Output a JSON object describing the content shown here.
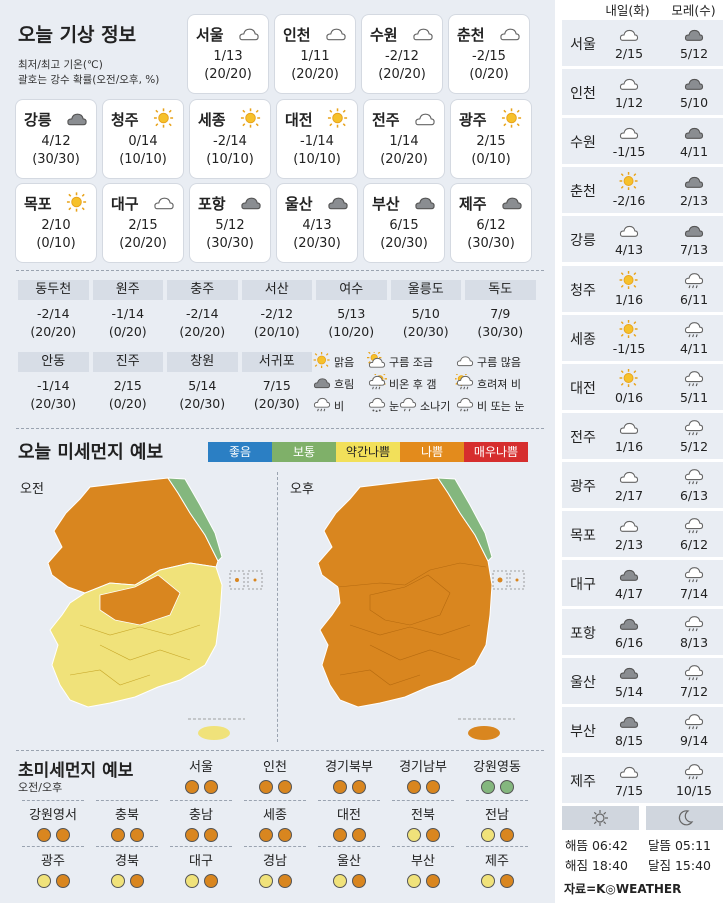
{
  "title": "오늘 기상 정보",
  "subtitle1": "최저/최고 기온(℃)",
  "subtitle2": "괄호는 강수 확률(오전/오후, %)",
  "cities": [
    {
      "name": "서울",
      "icon": "cloud",
      "temp": "1/13",
      "prob": "(20/20)"
    },
    {
      "name": "인천",
      "icon": "cloud",
      "temp": "1/11",
      "prob": "(20/20)"
    },
    {
      "name": "수원",
      "icon": "cloud",
      "temp": "-2/12",
      "prob": "(20/20)"
    },
    {
      "name": "춘천",
      "icon": "cloud",
      "temp": "-2/15",
      "prob": "(0/20)"
    },
    {
      "name": "강릉",
      "icon": "dark-cloud",
      "temp": "4/12",
      "prob": "(30/30)"
    },
    {
      "name": "청주",
      "icon": "sun",
      "temp": "0/14",
      "prob": "(10/10)"
    },
    {
      "name": "세종",
      "icon": "sun",
      "temp": "-2/14",
      "prob": "(10/10)"
    },
    {
      "name": "대전",
      "icon": "sun",
      "temp": "-1/14",
      "prob": "(10/10)"
    },
    {
      "name": "전주",
      "icon": "cloud",
      "temp": "1/14",
      "prob": "(20/20)"
    },
    {
      "name": "광주",
      "icon": "sun",
      "temp": "2/15",
      "prob": "(0/10)"
    },
    {
      "name": "목포",
      "icon": "sun",
      "temp": "2/10",
      "prob": "(0/10)"
    },
    {
      "name": "대구",
      "icon": "cloud",
      "temp": "2/15",
      "prob": "(20/20)"
    },
    {
      "name": "포항",
      "icon": "dark-cloud",
      "temp": "5/12",
      "prob": "(30/30)"
    },
    {
      "name": "울산",
      "icon": "dark-cloud",
      "temp": "4/13",
      "prob": "(20/30)"
    },
    {
      "name": "부산",
      "icon": "dark-cloud",
      "temp": "6/15",
      "prob": "(20/30)"
    },
    {
      "name": "제주",
      "icon": "dark-cloud",
      "temp": "6/12",
      "prob": "(30/30)"
    }
  ],
  "table1": [
    {
      "name": "동두천",
      "temp": "-2/14",
      "prob": "(20/20)"
    },
    {
      "name": "원주",
      "temp": "-1/14",
      "prob": "(0/20)"
    },
    {
      "name": "충주",
      "temp": "-2/14",
      "prob": "(20/20)"
    },
    {
      "name": "서산",
      "temp": "-2/12",
      "prob": "(20/10)"
    },
    {
      "name": "여수",
      "temp": "5/13",
      "prob": "(10/20)"
    },
    {
      "name": "울릉도",
      "temp": "5/10",
      "prob": "(20/30)"
    },
    {
      "name": "독도",
      "temp": "7/9",
      "prob": "(30/30)"
    }
  ],
  "table2": [
    {
      "name": "안동",
      "temp": "-1/14",
      "prob": "(20/30)"
    },
    {
      "name": "진주",
      "temp": "2/15",
      "prob": "(0/20)"
    },
    {
      "name": "창원",
      "temp": "5/14",
      "prob": "(20/30)"
    },
    {
      "name": "서귀포",
      "temp": "7/15",
      "prob": "(20/30)"
    }
  ],
  "legend": [
    {
      "icon": "sun",
      "label": "맑음"
    },
    {
      "icon": "sun-cloud",
      "label": "구름 조금"
    },
    {
      "icon": "cloud",
      "label": "구름 많음"
    },
    {
      "icon": "dark-cloud",
      "label": "흐림"
    },
    {
      "icon": "rain-sun",
      "label": "비온 후 갬"
    },
    {
      "icon": "sun-rain",
      "label": "흐려져 비"
    },
    {
      "icon": "rain",
      "label": "비"
    },
    {
      "icon": "snow",
      "label": "눈"
    },
    {
      "icon": "shower",
      "label": "소나기"
    },
    {
      "icon": "rain-snow",
      "label": "비 또는 눈"
    }
  ],
  "dust": {
    "title": "오늘 미세먼지 예보",
    "scale": [
      {
        "label": "좋음",
        "color": "#2b7fc4"
      },
      {
        "label": "보통",
        "color": "#7fb069"
      },
      {
        "label": "약간나쁨",
        "color": "#f2e05a"
      },
      {
        "label": "나쁨",
        "color": "#e38b1c"
      },
      {
        "label": "매우나쁨",
        "color": "#d62e2e"
      }
    ],
    "am_label": "오전",
    "pm_label": "오후",
    "colors": {
      "good": "#84b77e",
      "normal": "#f0e27a",
      "bad": "#d9861f"
    }
  },
  "ultra": {
    "title": "초미세먼지 예보",
    "subtitle": "오전/오후",
    "regions": [
      {
        "name": "서울",
        "am": "bad",
        "pm": "bad"
      },
      {
        "name": "인천",
        "am": "bad",
        "pm": "bad"
      },
      {
        "name": "경기북부",
        "am": "bad",
        "pm": "bad"
      },
      {
        "name": "경기남부",
        "am": "bad",
        "pm": "bad"
      },
      {
        "name": "강원영동",
        "am": "good",
        "pm": "good"
      },
      {
        "name": "강원영서",
        "am": "bad",
        "pm": "bad"
      },
      {
        "name": "충북",
        "am": "bad",
        "pm": "bad"
      },
      {
        "name": "충남",
        "am": "bad",
        "pm": "bad"
      },
      {
        "name": "세종",
        "am": "bad",
        "pm": "bad"
      },
      {
        "name": "대전",
        "am": "bad",
        "pm": "bad"
      },
      {
        "name": "전북",
        "am": "normal",
        "pm": "bad"
      },
      {
        "name": "전남",
        "am": "normal",
        "pm": "bad"
      },
      {
        "name": "광주",
        "am": "normal",
        "pm": "bad"
      },
      {
        "name": "경북",
        "am": "normal",
        "pm": "bad"
      },
      {
        "name": "대구",
        "am": "normal",
        "pm": "bad"
      },
      {
        "name": "경남",
        "am": "normal",
        "pm": "bad"
      },
      {
        "name": "울산",
        "am": "normal",
        "pm": "bad"
      },
      {
        "name": "부산",
        "am": "normal",
        "pm": "bad"
      },
      {
        "name": "제주",
        "am": "normal",
        "pm": "bad"
      }
    ]
  },
  "forecast": {
    "day1": "내일(화)",
    "day2": "모레(수)",
    "rows": [
      {
        "city": "서울",
        "i1": "cloud",
        "t1": "2/15",
        "i2": "dark-cloud",
        "t2": "5/12"
      },
      {
        "city": "인천",
        "i1": "cloud",
        "t1": "1/12",
        "i2": "dark-cloud",
        "t2": "5/10"
      },
      {
        "city": "수원",
        "i1": "cloud",
        "t1": "-1/15",
        "i2": "dark-cloud",
        "t2": "4/11"
      },
      {
        "city": "춘천",
        "i1": "sun",
        "t1": "-2/16",
        "i2": "dark-cloud",
        "t2": "2/13"
      },
      {
        "city": "강릉",
        "i1": "cloud",
        "t1": "4/13",
        "i2": "dark-cloud",
        "t2": "7/13"
      },
      {
        "city": "청주",
        "i1": "sun",
        "t1": "1/16",
        "i2": "rain",
        "t2": "6/11"
      },
      {
        "city": "세종",
        "i1": "sun",
        "t1": "-1/15",
        "i2": "rain",
        "t2": "4/11"
      },
      {
        "city": "대전",
        "i1": "sun",
        "t1": "0/16",
        "i2": "rain",
        "t2": "5/11"
      },
      {
        "city": "전주",
        "i1": "cloud",
        "t1": "1/16",
        "i2": "rain",
        "t2": "5/12"
      },
      {
        "city": "광주",
        "i1": "cloud",
        "t1": "2/17",
        "i2": "rain",
        "t2": "6/13"
      },
      {
        "city": "목포",
        "i1": "cloud",
        "t1": "2/13",
        "i2": "rain",
        "t2": "6/12"
      },
      {
        "city": "대구",
        "i1": "dark-cloud",
        "t1": "4/17",
        "i2": "rain",
        "t2": "7/14"
      },
      {
        "city": "포항",
        "i1": "dark-cloud",
        "t1": "6/16",
        "i2": "rain",
        "t2": "8/13"
      },
      {
        "city": "울산",
        "i1": "dark-cloud",
        "t1": "5/14",
        "i2": "rain",
        "t2": "7/12"
      },
      {
        "city": "부산",
        "i1": "dark-cloud",
        "t1": "8/15",
        "i2": "rain",
        "t2": "9/14"
      },
      {
        "city": "제주",
        "i1": "cloud",
        "t1": "7/15",
        "i2": "rain",
        "t2": "10/15"
      }
    ]
  },
  "sun_moon": {
    "sunrise": "해뜸 06:42",
    "sunset": "해짐 18:40",
    "moonrise": "달뜸 05:11",
    "moonset": "달짐 15:40"
  },
  "source": "자료=K◎WEATHER"
}
